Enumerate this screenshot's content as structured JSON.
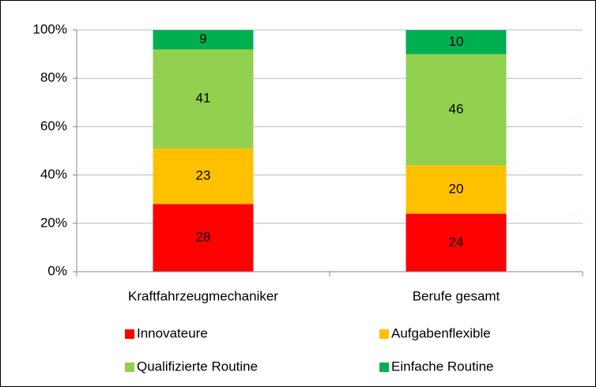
{
  "chart_data": {
    "type": "stacked_bar",
    "categories": [
      "Kraftfahrzeugmechaniker",
      "Berufe gesamt"
    ],
    "series": [
      {
        "name": "Innovateure",
        "color": "#ff0000",
        "values": [
          28,
          24
        ]
      },
      {
        "name": "Aufgabenflexible",
        "color": "#ffc000",
        "values": [
          23,
          20
        ]
      },
      {
        "name": "Qualifizierte Routine",
        "color": "#92d050",
        "values": [
          41,
          46
        ]
      },
      {
        "name": "Einfache Routine",
        "color": "#00b050",
        "values": [
          9,
          10
        ]
      }
    ],
    "ylim": [
      0,
      100
    ],
    "yticks": [
      {
        "value": 0,
        "label": "0%"
      },
      {
        "value": 20,
        "label": "20%"
      },
      {
        "value": 40,
        "label": "40%"
      },
      {
        "value": 60,
        "label": "60%"
      },
      {
        "value": 80,
        "label": "80%"
      },
      {
        "value": 100,
        "label": "100%"
      }
    ],
    "grid": true,
    "legend": "bottom"
  }
}
